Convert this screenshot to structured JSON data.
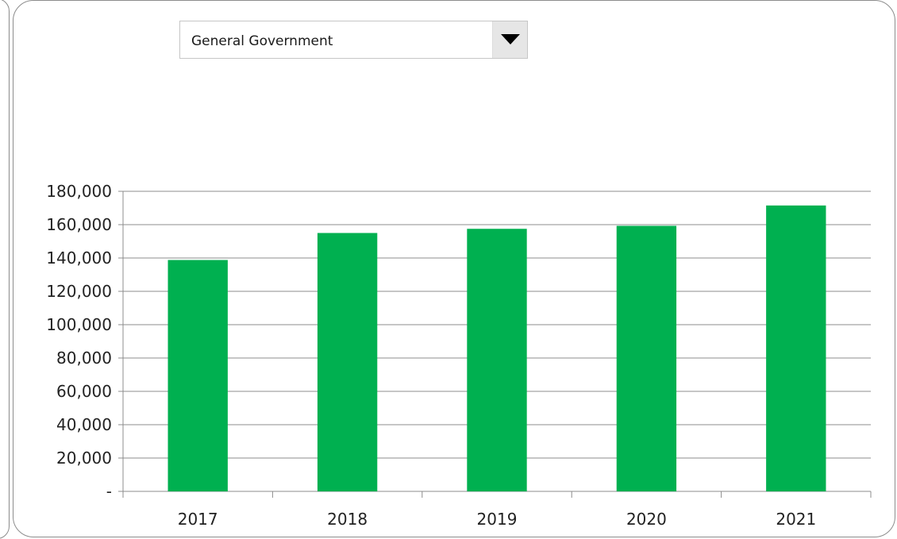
{
  "dropdown": {
    "selected": "General Government",
    "icon": "chevron-down-icon"
  },
  "chart_data": {
    "type": "bar",
    "title": "",
    "xlabel": "",
    "ylabel": "",
    "categories": [
      "2017",
      "2018",
      "2019",
      "2020",
      "2021"
    ],
    "values": [
      138800,
      155000,
      157500,
      159300,
      171500
    ],
    "ylim": [
      0,
      180000
    ],
    "ytick_values": [
      0,
      20000,
      40000,
      60000,
      80000,
      100000,
      120000,
      140000,
      160000,
      180000
    ],
    "ytick_labels": [
      "-",
      "20,000",
      "40,000",
      "60,000",
      "80,000",
      "100,000",
      "120,000",
      "140,000",
      "160,000",
      "180,000"
    ],
    "grid": "horizontal",
    "legend": "none",
    "bar_color": "#00b050",
    "grid_color": "#8c8c8c"
  }
}
